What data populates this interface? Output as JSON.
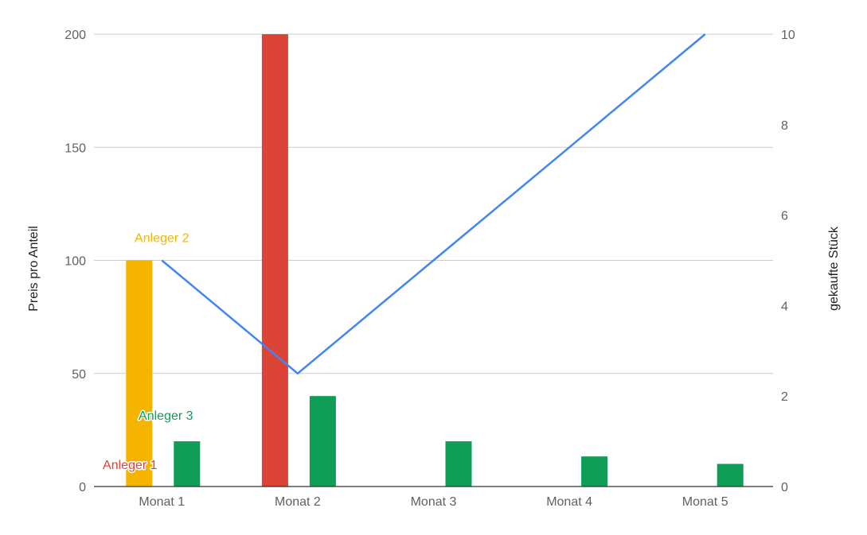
{
  "chart_data": {
    "type": "bar",
    "categories": [
      "Monat 1",
      "Monat 2",
      "Monat 3",
      "Monat 4",
      "Monat 5"
    ],
    "ylabel_left": "Preis pro Anteil",
    "ylabel_right": "gekaufte Stück",
    "ylim_left": [
      0,
      200
    ],
    "ylim_right": [
      0,
      10
    ],
    "yticks_left": [
      "0",
      "50",
      "100",
      "150",
      "200"
    ],
    "yticks_right": [
      "0",
      "2",
      "4",
      "6",
      "8",
      "10"
    ],
    "grid": true,
    "bar_series": [
      {
        "name": "Anleger 1",
        "color": "#db4437",
        "axis": "left",
        "values": [
          0,
          200,
          0,
          0,
          0
        ]
      },
      {
        "name": "Anleger 2",
        "color": "#f4b400",
        "axis": "left",
        "values": [
          100,
          0,
          0,
          0,
          0
        ]
      },
      {
        "name": "Anleger 3",
        "color": "#0f9d58",
        "axis": "left",
        "values": [
          20,
          40,
          20,
          13.3,
          10
        ]
      }
    ],
    "line_series": [
      {
        "name": "",
        "color": "#4285f4",
        "axis": "right",
        "values": [
          5,
          2.5,
          5,
          7.5,
          10
        ]
      }
    ],
    "annotations": [
      {
        "text": "Anleger 2",
        "color": "#f4b400"
      },
      {
        "text": "Anleger 3",
        "color": "#0f9d58"
      },
      {
        "text": "Anleger 1",
        "color": "#db4437"
      }
    ]
  }
}
